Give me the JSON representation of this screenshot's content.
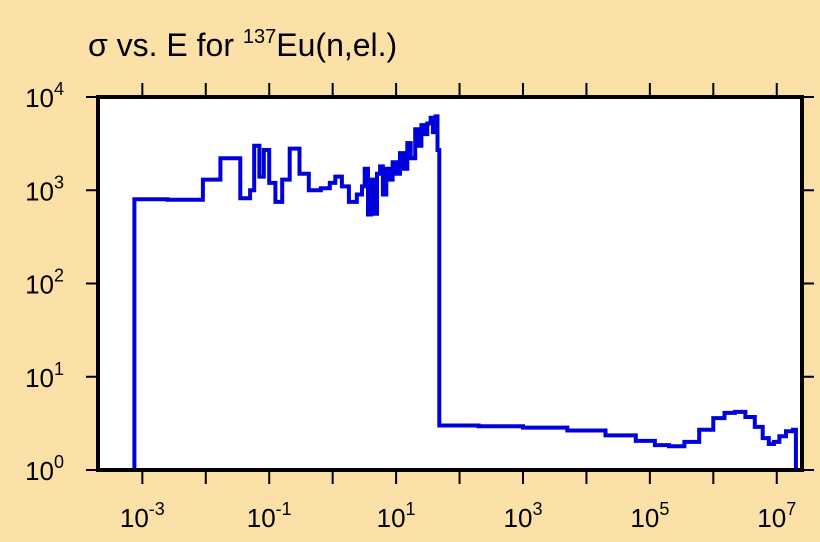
{
  "colors": {
    "background": "#fbe0a8",
    "plot_area": "#ffffff",
    "series": "#0000dd",
    "axis": "#000000"
  },
  "chart_data": {
    "type": "line",
    "title": {
      "prefix": "σ vs. E for ",
      "superscript": "137",
      "suffix": "Eu(n,el.)"
    },
    "xlabel": "",
    "ylabel": "",
    "x_scale": "log",
    "y_scale": "log",
    "xlim": [
      0.0002,
      25000000
    ],
    "ylim": [
      1,
      10000
    ],
    "grid": false,
    "legend": "none",
    "x_ticks": [
      {
        "base": "10",
        "exp": "-3"
      },
      {
        "base": "10",
        "exp": "-1"
      },
      {
        "base": "10",
        "exp": "1"
      },
      {
        "base": "10",
        "exp": "3"
      },
      {
        "base": "10",
        "exp": "5"
      },
      {
        "base": "10",
        "exp": "7"
      }
    ],
    "y_ticks": [
      {
        "base": "10",
        "exp": "0"
      },
      {
        "base": "10",
        "exp": "1"
      },
      {
        "base": "10",
        "exp": "2"
      },
      {
        "base": "10",
        "exp": "3"
      },
      {
        "base": "10",
        "exp": "4"
      }
    ],
    "series": [
      {
        "style": "step",
        "points": [
          [
            0.00075,
            1
          ],
          [
            0.00075,
            800
          ],
          [
            0.0025,
            790
          ],
          [
            0.009,
            1300
          ],
          [
            0.017,
            2200
          ],
          [
            0.035,
            820
          ],
          [
            0.05,
            1000
          ],
          [
            0.058,
            3000
          ],
          [
            0.07,
            1400
          ],
          [
            0.082,
            2700
          ],
          [
            0.1,
            1200
          ],
          [
            0.125,
            750
          ],
          [
            0.16,
            1300
          ],
          [
            0.21,
            2800
          ],
          [
            0.3,
            1500
          ],
          [
            0.42,
            1000
          ],
          [
            0.65,
            1050
          ],
          [
            0.9,
            1200
          ],
          [
            1.1,
            1400
          ],
          [
            1.4,
            1100
          ],
          [
            1.8,
            750
          ],
          [
            2.4,
            900
          ],
          [
            2.9,
            1100
          ],
          [
            3.2,
            1700
          ],
          [
            3.6,
            550
          ],
          [
            4.0,
            1300
          ],
          [
            4.4,
            560
          ],
          [
            5.0,
            1500
          ],
          [
            5.6,
            1800
          ],
          [
            6.2,
            900
          ],
          [
            7.0,
            1700
          ],
          [
            8.0,
            1300
          ],
          [
            8.8,
            2000
          ],
          [
            10.0,
            1500
          ],
          [
            11.5,
            2500
          ],
          [
            13.0,
            1700
          ],
          [
            15.0,
            3200
          ],
          [
            17.0,
            2200
          ],
          [
            20.0,
            4500
          ],
          [
            22.0,
            3000
          ],
          [
            25.0,
            5000
          ],
          [
            28.0,
            4000
          ],
          [
            31.0,
            5200
          ],
          [
            35.0,
            6000
          ],
          [
            38.0,
            4200
          ],
          [
            40.0,
            5600
          ],
          [
            42.0,
            6200
          ],
          [
            45.0,
            2700
          ],
          [
            48.0,
            3.0
          ],
          [
            200,
            2.95
          ],
          [
            1000,
            2.85
          ],
          [
            5000,
            2.65
          ],
          [
            20000,
            2.35
          ],
          [
            60000,
            2.05
          ],
          [
            120000,
            1.85
          ],
          [
            200000,
            1.8
          ],
          [
            350000,
            2.0
          ],
          [
            600000,
            2.7
          ],
          [
            1000000,
            3.6
          ],
          [
            1500000,
            4.1
          ],
          [
            2200000,
            4.2
          ],
          [
            3200000,
            3.7
          ],
          [
            4500000,
            2.9
          ],
          [
            6000000,
            2.2
          ],
          [
            7500000,
            1.9
          ],
          [
            9000000,
            2.0
          ],
          [
            11000000,
            2.3
          ],
          [
            14000000,
            2.6
          ],
          [
            18000000,
            2.7
          ],
          [
            20000000,
            2.7
          ],
          [
            20000000,
            1
          ]
        ]
      }
    ]
  }
}
